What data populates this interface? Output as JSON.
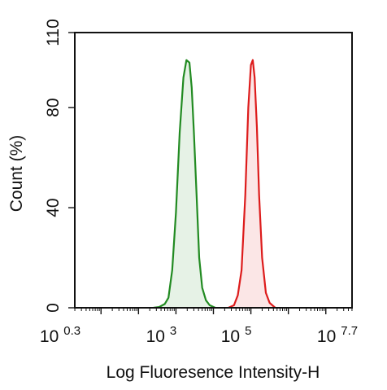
{
  "chart_data": {
    "type": "area",
    "title": "",
    "xlabel": "Log Fluoresence Intensity-H",
    "ylabel": "Count  (%)",
    "x_scale": "log10",
    "xlim": [
      0.3,
      7.7
    ],
    "ylim": [
      0,
      110
    ],
    "x_ticks": [
      {
        "base": "10",
        "exp": "0.3",
        "value": 0.3
      },
      {
        "base": "10",
        "exp": "3",
        "value": 3
      },
      {
        "base": "10",
        "exp": "5",
        "value": 5
      },
      {
        "base": "10",
        "exp": "7.7",
        "value": 7.7
      }
    ],
    "y_ticks": [
      {
        "label": "0",
        "value": 0
      },
      {
        "label": "40",
        "value": 40
      },
      {
        "label": "80",
        "value": 80
      },
      {
        "label": "110",
        "value": 110
      }
    ],
    "grid": false,
    "legend": "none",
    "series": [
      {
        "color": "#228B22",
        "fill": "#e6f2e6",
        "x": [
          2.4,
          2.55,
          2.7,
          2.8,
          2.9,
          3.0,
          3.1,
          3.2,
          3.28,
          3.36,
          3.42,
          3.48,
          3.55,
          3.62,
          3.7,
          3.8,
          3.9,
          4.05
        ],
        "y": [
          0,
          0.3,
          1.5,
          4,
          15,
          38,
          70,
          92,
          99,
          98,
          88,
          70,
          45,
          20,
          8,
          3,
          1,
          0
        ]
      },
      {
        "color": "#dd1c1c",
        "fill": "#fbe6e6",
        "x": [
          4.4,
          4.55,
          4.65,
          4.75,
          4.85,
          4.93,
          5.0,
          5.05,
          5.1,
          5.16,
          5.22,
          5.3,
          5.4,
          5.5,
          5.65
        ],
        "y": [
          0,
          1,
          5,
          15,
          45,
          80,
          97,
          99,
          92,
          72,
          45,
          20,
          6,
          2,
          0
        ]
      }
    ]
  }
}
